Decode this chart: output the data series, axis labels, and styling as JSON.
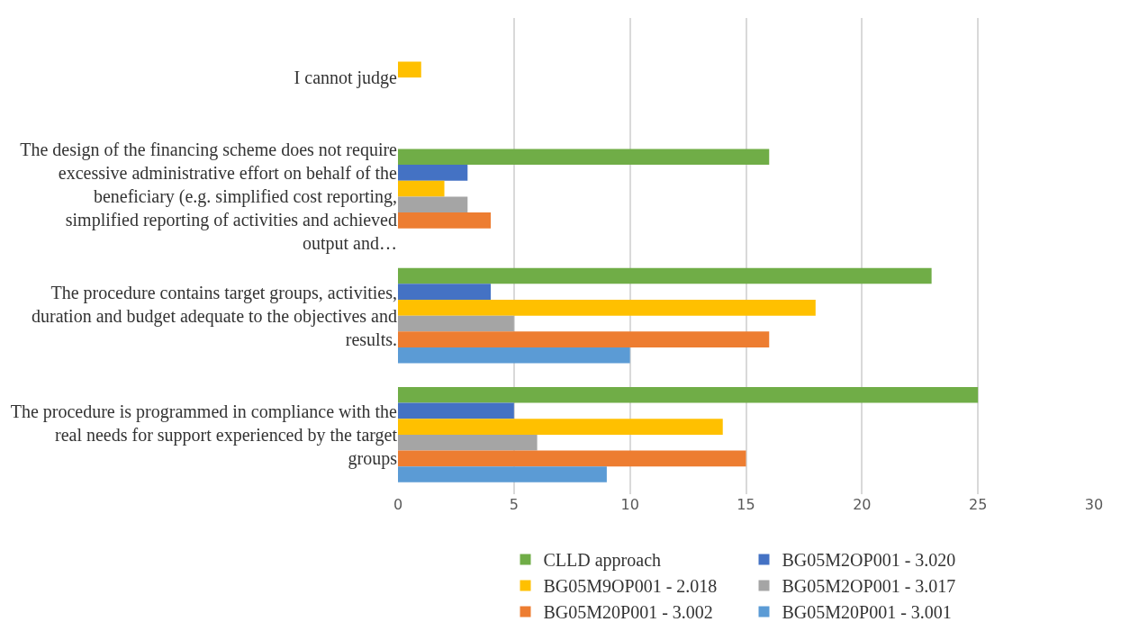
{
  "chart_data": {
    "type": "bar",
    "orientation": "horizontal",
    "categories": [
      "I cannot judge",
      "The design of the financing scheme does not require excessive administrative effort on behalf of the beneficiary (e.g. simplified cost reporting, simplified reporting of activities and achieved output and…",
      "The procedure contains target groups, activities, duration and budget adequate to the objectives and results.",
      "The procedure is programmed in compliance with the real needs for support experienced by the target groups"
    ],
    "series": [
      {
        "name": "CLLD approach",
        "color": "#70ad47",
        "values": [
          null,
          16,
          23,
          25
        ]
      },
      {
        "name": "BG05M2OP001 - 3.020",
        "color": "#4472c4",
        "values": [
          null,
          3,
          4,
          5
        ]
      },
      {
        "name": "BG05M9OP001 - 2.018",
        "color": "#ffc000",
        "values": [
          1,
          2,
          18,
          14
        ]
      },
      {
        "name": "BG05M2OP001 - 3.017",
        "color": "#a5a5a5",
        "values": [
          null,
          3,
          5,
          6
        ]
      },
      {
        "name": "BG05M20P001 - 3.002",
        "color": "#ed7d31",
        "values": [
          null,
          4,
          16,
          15
        ]
      },
      {
        "name": "BG05M20P001 - 3.001",
        "color": "#5b9bd5",
        "values": [
          null,
          null,
          10,
          9
        ]
      }
    ],
    "xlim": [
      0,
      30
    ],
    "xticks": [
      0,
      5,
      10,
      15,
      20,
      25,
      30
    ],
    "grid": "x",
    "legend": "bottom"
  }
}
